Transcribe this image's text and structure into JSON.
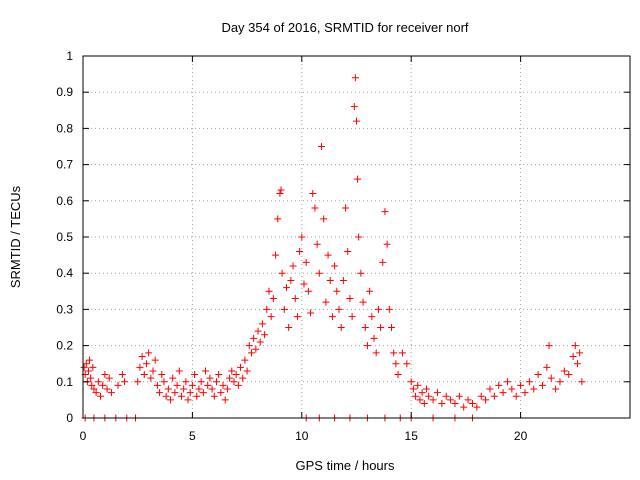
{
  "chart_data": {
    "type": "scatter",
    "title": "Day 354 of 2016, SRMTID for receiver norf",
    "xlabel": "GPS time / hours",
    "ylabel": "SRMTID / TECUs",
    "xlim": [
      0,
      25
    ],
    "ylim": [
      0,
      1
    ],
    "xticks": [
      0,
      5,
      10,
      15,
      20
    ],
    "xtick_labels": [
      "0",
      "5",
      "10",
      "15",
      "20"
    ],
    "yticks": [
      0,
      0.1,
      0.2,
      0.3,
      0.4,
      0.5,
      0.6,
      0.7,
      0.8,
      0.9,
      1
    ],
    "ytick_labels": [
      "0",
      "0.1",
      "0.2",
      "0.3",
      "0.4",
      "0.5",
      "0.6",
      "0.7",
      "0.8",
      "0.9",
      "1"
    ],
    "grid": true,
    "marker": "+",
    "color": "#ff0000",
    "series": [
      {
        "name": "SRMTID",
        "points": [
          [
            0.05,
            0.14
          ],
          [
            0.1,
            0.12
          ],
          [
            0.15,
            0.15
          ],
          [
            0.2,
            0.1
          ],
          [
            0.25,
            0.13
          ],
          [
            0.3,
            0.16
          ],
          [
            0.35,
            0.11
          ],
          [
            0.4,
            0.09
          ],
          [
            0.45,
            0.14
          ],
          [
            0.5,
            0.08
          ],
          [
            0.6,
            0.07
          ],
          [
            0.7,
            0.1
          ],
          [
            0.8,
            0.06
          ],
          [
            0.9,
            0.09
          ],
          [
            1.0,
            0.12
          ],
          [
            1.1,
            0.08
          ],
          [
            1.2,
            0.11
          ],
          [
            1.3,
            0.07
          ],
          [
            1.6,
            0.09
          ],
          [
            1.8,
            0.12
          ],
          [
            1.9,
            0.1
          ],
          [
            2.5,
            0.1
          ],
          [
            2.6,
            0.14
          ],
          [
            2.7,
            0.17
          ],
          [
            2.8,
            0.12
          ],
          [
            2.9,
            0.15
          ],
          [
            3.0,
            0.18
          ],
          [
            3.1,
            0.11
          ],
          [
            3.2,
            0.13
          ],
          [
            3.3,
            0.16
          ],
          [
            3.4,
            0.09
          ],
          [
            3.5,
            0.07
          ],
          [
            3.6,
            0.12
          ],
          [
            3.7,
            0.1
          ],
          [
            3.8,
            0.06
          ],
          [
            3.9,
            0.08
          ],
          [
            4.0,
            0.05
          ],
          [
            4.1,
            0.11
          ],
          [
            4.2,
            0.07
          ],
          [
            4.3,
            0.09
          ],
          [
            4.4,
            0.13
          ],
          [
            4.5,
            0.06
          ],
          [
            4.6,
            0.08
          ],
          [
            4.7,
            0.1
          ],
          [
            4.8,
            0.05
          ],
          [
            4.9,
            0.07
          ],
          [
            5.0,
            0.09
          ],
          [
            5.1,
            0.12
          ],
          [
            5.2,
            0.06
          ],
          [
            5.3,
            0.08
          ],
          [
            5.4,
            0.1
          ],
          [
            5.5,
            0.07
          ],
          [
            5.6,
            0.13
          ],
          [
            5.7,
            0.09
          ],
          [
            5.8,
            0.11
          ],
          [
            5.9,
            0.08
          ],
          [
            6.0,
            0.06
          ],
          [
            6.1,
            0.1
          ],
          [
            6.2,
            0.12
          ],
          [
            6.3,
            0.07
          ],
          [
            6.4,
            0.09
          ],
          [
            6.5,
            0.05
          ],
          [
            6.6,
            0.08
          ],
          [
            6.7,
            0.11
          ],
          [
            6.8,
            0.13
          ],
          [
            6.9,
            0.1
          ],
          [
            7.0,
            0.12
          ],
          [
            7.1,
            0.09
          ],
          [
            7.2,
            0.14
          ],
          [
            7.3,
            0.11
          ],
          [
            7.4,
            0.16
          ],
          [
            7.5,
            0.13
          ],
          [
            7.6,
            0.2
          ],
          [
            7.7,
            0.18
          ],
          [
            7.8,
            0.22
          ],
          [
            7.9,
            0.19
          ],
          [
            8.0,
            0.24
          ],
          [
            8.1,
            0.21
          ],
          [
            8.2,
            0.26
          ],
          [
            8.3,
            0.23
          ],
          [
            8.4,
            0.3
          ],
          [
            8.5,
            0.35
          ],
          [
            8.6,
            0.28
          ],
          [
            8.7,
            0.33
          ],
          [
            8.8,
            0.45
          ],
          [
            8.9,
            0.55
          ],
          [
            9.0,
            0.62
          ],
          [
            9.05,
            0.63
          ],
          [
            9.1,
            0.4
          ],
          [
            9.2,
            0.3
          ],
          [
            9.3,
            0.36
          ],
          [
            9.4,
            0.25
          ],
          [
            9.5,
            0.38
          ],
          [
            9.6,
            0.42
          ],
          [
            9.7,
            0.33
          ],
          [
            9.8,
            0.28
          ],
          [
            9.9,
            0.46
          ],
          [
            10.0,
            0.5
          ],
          [
            10.1,
            0.37
          ],
          [
            10.2,
            0.43
          ],
          [
            10.3,
            0.35
          ],
          [
            10.4,
            0.29
          ],
          [
            10.5,
            0.62
          ],
          [
            10.6,
            0.58
          ],
          [
            10.7,
            0.48
          ],
          [
            10.8,
            0.4
          ],
          [
            10.9,
            0.75
          ],
          [
            11.0,
            0.55
          ],
          [
            11.1,
            0.32
          ],
          [
            11.2,
            0.45
          ],
          [
            11.3,
            0.38
          ],
          [
            11.4,
            0.28
          ],
          [
            11.5,
            0.42
          ],
          [
            11.6,
            0.35
          ],
          [
            11.7,
            0.3
          ],
          [
            11.8,
            0.25
          ],
          [
            11.9,
            0.38
          ],
          [
            12.0,
            0.58
          ],
          [
            12.1,
            0.46
          ],
          [
            12.2,
            0.33
          ],
          [
            12.3,
            0.28
          ],
          [
            12.4,
            0.86
          ],
          [
            12.45,
            0.94
          ],
          [
            12.5,
            0.82
          ],
          [
            12.55,
            0.66
          ],
          [
            12.6,
            0.5
          ],
          [
            12.7,
            0.4
          ],
          [
            12.8,
            0.32
          ],
          [
            12.9,
            0.25
          ],
          [
            13.0,
            0.2
          ],
          [
            13.1,
            0.35
          ],
          [
            13.2,
            0.28
          ],
          [
            13.3,
            0.22
          ],
          [
            13.4,
            0.18
          ],
          [
            13.5,
            0.3
          ],
          [
            13.6,
            0.25
          ],
          [
            13.7,
            0.43
          ],
          [
            13.8,
            0.57
          ],
          [
            13.9,
            0.48
          ],
          [
            14.0,
            0.3
          ],
          [
            14.1,
            0.25
          ],
          [
            14.2,
            0.18
          ],
          [
            14.3,
            0.15
          ],
          [
            14.4,
            0.12
          ],
          [
            14.6,
            0.18
          ],
          [
            14.8,
            0.15
          ],
          [
            15.0,
            0.1
          ],
          [
            15.1,
            0.08
          ],
          [
            15.2,
            0.06
          ],
          [
            15.3,
            0.09
          ],
          [
            15.4,
            0.05
          ],
          [
            15.5,
            0.07
          ],
          [
            15.6,
            0.04
          ],
          [
            15.7,
            0.08
          ],
          [
            15.8,
            0.06
          ],
          [
            16.0,
            0.05
          ],
          [
            16.2,
            0.07
          ],
          [
            16.4,
            0.04
          ],
          [
            16.6,
            0.06
          ],
          [
            16.8,
            0.05
          ],
          [
            17.0,
            0.04
          ],
          [
            17.2,
            0.06
          ],
          [
            17.4,
            0.03
          ],
          [
            17.6,
            0.05
          ],
          [
            17.8,
            0.04
          ],
          [
            18.0,
            0.03
          ],
          [
            18.2,
            0.06
          ],
          [
            18.4,
            0.05
          ],
          [
            18.6,
            0.08
          ],
          [
            18.8,
            0.06
          ],
          [
            19.0,
            0.09
          ],
          [
            19.2,
            0.07
          ],
          [
            19.4,
            0.1
          ],
          [
            19.6,
            0.08
          ],
          [
            19.8,
            0.06
          ],
          [
            20.0,
            0.09
          ],
          [
            20.2,
            0.07
          ],
          [
            20.4,
            0.1
          ],
          [
            20.6,
            0.08
          ],
          [
            20.8,
            0.12
          ],
          [
            21.0,
            0.09
          ],
          [
            21.2,
            0.14
          ],
          [
            21.3,
            0.2
          ],
          [
            21.4,
            0.11
          ],
          [
            21.6,
            0.08
          ],
          [
            21.8,
            0.1
          ],
          [
            22.0,
            0.13
          ],
          [
            22.2,
            0.12
          ],
          [
            22.4,
            0.17
          ],
          [
            22.5,
            0.2
          ],
          [
            22.6,
            0.15
          ],
          [
            22.7,
            0.18
          ],
          [
            22.8,
            0.1
          ],
          [
            0.1,
            0.0
          ],
          [
            0.5,
            0.0
          ],
          [
            1.0,
            0.0
          ],
          [
            1.5,
            0.0
          ],
          [
            2.0,
            0.0
          ],
          [
            2.4,
            0.0
          ],
          [
            10.2,
            0.0
          ],
          [
            10.8,
            0.0
          ],
          [
            11.5,
            0.0
          ],
          [
            12.2,
            0.0
          ],
          [
            13.0,
            0.0
          ],
          [
            13.8,
            0.0
          ],
          [
            14.5,
            0.0
          ],
          [
            15.0,
            0.0
          ],
          [
            16.0,
            0.0
          ],
          [
            17.0,
            0.0
          ],
          [
            17.8,
            0.0
          ]
        ]
      }
    ]
  }
}
